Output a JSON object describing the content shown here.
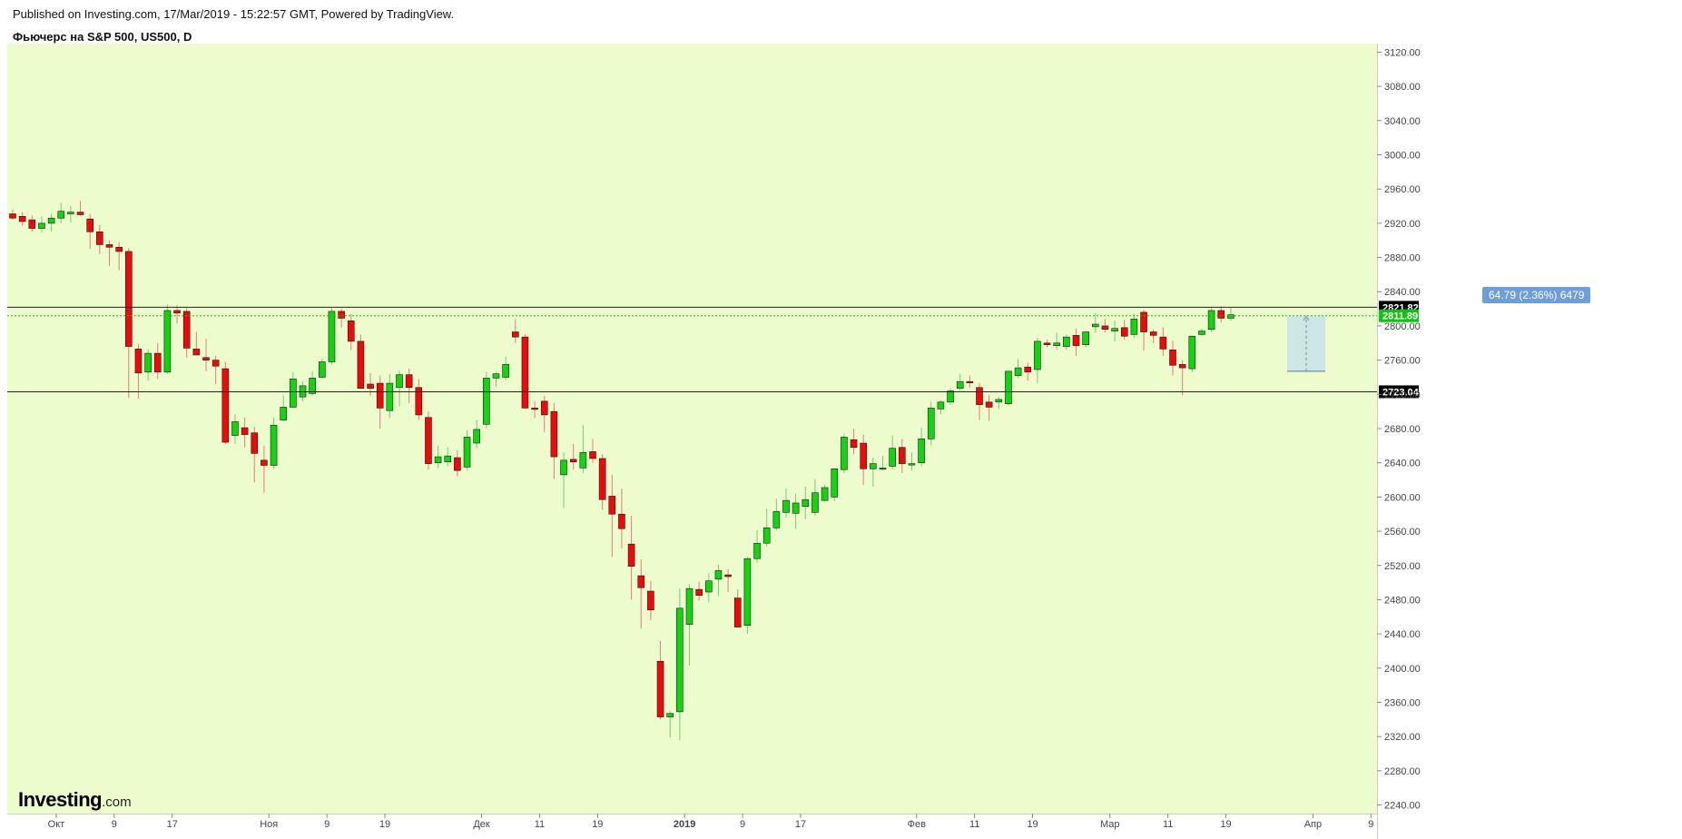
{
  "header": {
    "published": "Published on Investing.com, 17/Mar/2019 - 15:22:57 GMT, Powered by TradingView.",
    "symbol": "Фьючерс на S&P 500, US500, D"
  },
  "logo": {
    "brand": "Investing",
    "tld": ".com"
  },
  "colors": {
    "background": "#ecfccc",
    "up": "#13d313",
    "down": "#ee0a0a",
    "up_wick": "#7bc87b",
    "down_wick": "#e87b7b",
    "level": "#222222",
    "last_price": "#13c313"
  },
  "measure": {
    "label": "64.79 (2.36%) 6479",
    "from_price": 2747,
    "to_price": 2811.89
  },
  "chart_data": {
    "type": "candlestick",
    "y_axis": {
      "min": 2230,
      "max": 3130,
      "ticks": [
        "3120.00",
        "3080.00",
        "3040.00",
        "3000.00",
        "2960.00",
        "2920.00",
        "2880.00",
        "2840.00",
        "2800.00",
        "2760.00",
        "2720.00",
        "2680.00",
        "2640.00",
        "2600.00",
        "2560.00",
        "2520.00",
        "2480.00",
        "2440.00",
        "2400.00",
        "2360.00",
        "2320.00",
        "2280.00",
        "2240.00"
      ]
    },
    "x_axis": {
      "labels": [
        {
          "text": "Окт",
          "index": 4.5
        },
        {
          "text": "9",
          "index": 10.5
        },
        {
          "text": "17",
          "index": 16.5
        },
        {
          "text": "Ноя",
          "index": 26.5
        },
        {
          "text": "9",
          "index": 32.5
        },
        {
          "text": "19",
          "index": 38.5
        },
        {
          "text": "Дек",
          "index": 48.5
        },
        {
          "text": "11",
          "index": 54.5
        },
        {
          "text": "19",
          "index": 60.5
        },
        {
          "text": "2019",
          "index": 69.5,
          "bold": true
        },
        {
          "text": "9",
          "index": 75.5
        },
        {
          "text": "17",
          "index": 81.5
        },
        {
          "text": "Фев",
          "index": 93.5
        },
        {
          "text": "11",
          "index": 99.5
        },
        {
          "text": "19",
          "index": 105.5
        },
        {
          "text": "Мар",
          "index": 113.5
        },
        {
          "text": "11",
          "index": 119.5
        },
        {
          "text": "19",
          "index": 125.5
        },
        {
          "text": "Апр",
          "index": 134.5
        },
        {
          "text": "9",
          "index": 140.5
        }
      ]
    },
    "levels": [
      {
        "price": 2821.82,
        "label": "2821.82"
      },
      {
        "price": 2723.04,
        "label": "2723.04"
      }
    ],
    "last_price": {
      "price": 2811.89,
      "label": "2811.89"
    },
    "candles": [
      [
        2931,
        2936,
        2924,
        2926
      ],
      [
        2928,
        2933,
        2917,
        2922
      ],
      [
        2924,
        2929,
        2910,
        2914
      ],
      [
        2914,
        2928,
        2909,
        2920
      ],
      [
        2920,
        2931,
        2910,
        2926
      ],
      [
        2926,
        2944,
        2920,
        2934
      ],
      [
        2931,
        2940,
        2921,
        2933
      ],
      [
        2933,
        2946,
        2929,
        2930
      ],
      [
        2925,
        2931,
        2890,
        2910
      ],
      [
        2910,
        2918,
        2884,
        2895
      ],
      [
        2895,
        2900,
        2870,
        2892
      ],
      [
        2892,
        2898,
        2865,
        2887
      ],
      [
        2887,
        2891,
        2716,
        2776
      ],
      [
        2773,
        2779,
        2715,
        2745
      ],
      [
        2746,
        2773,
        2736,
        2768
      ],
      [
        2768,
        2780,
        2738,
        2746
      ],
      [
        2746,
        2825,
        2744,
        2818
      ],
      [
        2818,
        2824,
        2803,
        2815
      ],
      [
        2817,
        2821,
        2763,
        2774
      ],
      [
        2773,
        2793,
        2768,
        2766
      ],
      [
        2763,
        2785,
        2747,
        2760
      ],
      [
        2760,
        2765,
        2732,
        2753
      ],
      [
        2750,
        2758,
        2662,
        2664
      ],
      [
        2672,
        2697,
        2662,
        2688
      ],
      [
        2681,
        2693,
        2658,
        2673
      ],
      [
        2675,
        2682,
        2617,
        2651
      ],
      [
        2643,
        2660,
        2605,
        2637
      ],
      [
        2637,
        2693,
        2633,
        2684
      ],
      [
        2690,
        2719,
        2688,
        2705
      ],
      [
        2705,
        2746,
        2704,
        2738
      ],
      [
        2717,
        2735,
        2712,
        2730
      ],
      [
        2721,
        2747,
        2719,
        2739
      ],
      [
        2740,
        2762,
        2738,
        2758
      ],
      [
        2758,
        2821,
        2755,
        2817
      ],
      [
        2817,
        2820,
        2798,
        2809
      ],
      [
        2806,
        2814,
        2772,
        2782
      ],
      [
        2782,
        2790,
        2730,
        2727
      ],
      [
        2732,
        2745,
        2718,
        2727
      ],
      [
        2733,
        2742,
        2680,
        2704
      ],
      [
        2701,
        2744,
        2692,
        2733
      ],
      [
        2728,
        2748,
        2706,
        2743
      ],
      [
        2743,
        2750,
        2710,
        2728
      ],
      [
        2728,
        2738,
        2690,
        2696
      ],
      [
        2693,
        2700,
        2632,
        2639
      ],
      [
        2640,
        2660,
        2634,
        2647
      ],
      [
        2641,
        2658,
        2636,
        2648
      ],
      [
        2646,
        2655,
        2624,
        2631
      ],
      [
        2635,
        2678,
        2631,
        2670
      ],
      [
        2663,
        2690,
        2657,
        2679
      ],
      [
        2685,
        2746,
        2680,
        2739
      ],
      [
        2739,
        2746,
        2729,
        2744
      ],
      [
        2740,
        2764,
        2737,
        2755
      ],
      [
        2793,
        2808,
        2780,
        2787
      ],
      [
        2787,
        2790,
        2703,
        2704
      ],
      [
        2704,
        2712,
        2692,
        2703
      ],
      [
        2712,
        2718,
        2676,
        2696
      ],
      [
        2700,
        2710,
        2621,
        2647
      ],
      [
        2626,
        2652,
        2587,
        2643
      ],
      [
        2644,
        2662,
        2632,
        2641
      ],
      [
        2634,
        2684,
        2628,
        2652
      ],
      [
        2653,
        2668,
        2640,
        2645
      ],
      [
        2645,
        2650,
        2585,
        2597
      ],
      [
        2601,
        2626,
        2530,
        2580
      ],
      [
        2580,
        2610,
        2540,
        2563
      ],
      [
        2545,
        2578,
        2480,
        2519
      ],
      [
        2508,
        2527,
        2446,
        2494
      ],
      [
        2490,
        2502,
        2456,
        2468
      ],
      [
        2408,
        2432,
        2340,
        2343
      ],
      [
        2343,
        2350,
        2319,
        2347
      ],
      [
        2349,
        2493,
        2316,
        2470
      ],
      [
        2451,
        2498,
        2403,
        2493
      ],
      [
        2492,
        2501,
        2479,
        2485
      ],
      [
        2489,
        2511,
        2477,
        2502
      ],
      [
        2504,
        2521,
        2484,
        2514
      ],
      [
        2509,
        2516,
        2489,
        2507
      ],
      [
        2482,
        2492,
        2448,
        2448
      ],
      [
        2450,
        2530,
        2440,
        2528
      ],
      [
        2528,
        2561,
        2523,
        2546
      ],
      [
        2546,
        2586,
        2542,
        2564
      ],
      [
        2564,
        2598,
        2561,
        2583
      ],
      [
        2582,
        2610,
        2576,
        2596
      ],
      [
        2581,
        2604,
        2563,
        2593
      ],
      [
        2589,
        2612,
        2574,
        2597
      ],
      [
        2582,
        2621,
        2578,
        2605
      ],
      [
        2596,
        2614,
        2595,
        2611
      ],
      [
        2600,
        2627,
        2595,
        2633
      ],
      [
        2632,
        2674,
        2628,
        2670
      ],
      [
        2667,
        2680,
        2650,
        2658
      ],
      [
        2663,
        2673,
        2614,
        2633
      ],
      [
        2633,
        2646,
        2612,
        2639
      ],
      [
        2633,
        2648,
        2631,
        2634
      ],
      [
        2636,
        2672,
        2632,
        2657
      ],
      [
        2658,
        2668,
        2628,
        2639
      ],
      [
        2638,
        2652,
        2631,
        2639
      ],
      [
        2640,
        2681,
        2636,
        2668
      ],
      [
        2668,
        2711,
        2661,
        2704
      ],
      [
        2703,
        2713,
        2697,
        2711
      ],
      [
        2711,
        2727,
        2708,
        2724
      ],
      [
        2727,
        2744,
        2724,
        2735
      ],
      [
        2735,
        2742,
        2728,
        2734
      ],
      [
        2728,
        2733,
        2690,
        2708
      ],
      [
        2711,
        2719,
        2689,
        2705
      ],
      [
        2711,
        2717,
        2703,
        2714
      ],
      [
        2709,
        2742,
        2707,
        2747
      ],
      [
        2742,
        2761,
        2739,
        2751
      ],
      [
        2752,
        2757,
        2736,
        2746
      ],
      [
        2749,
        2786,
        2733,
        2782
      ],
      [
        2780,
        2784,
        2775,
        2778
      ],
      [
        2777,
        2792,
        2772,
        2780
      ],
      [
        2776,
        2790,
        2772,
        2787
      ],
      [
        2789,
        2797,
        2765,
        2777
      ],
      [
        2778,
        2792,
        2775,
        2793
      ],
      [
        2799,
        2815,
        2792,
        2802
      ],
      [
        2800,
        2808,
        2792,
        2796
      ],
      [
        2794,
        2806,
        2782,
        2797
      ],
      [
        2798,
        2807,
        2784,
        2788
      ],
      [
        2790,
        2814,
        2786,
        2808
      ],
      [
        2816,
        2819,
        2771,
        2793
      ],
      [
        2793,
        2796,
        2780,
        2789
      ],
      [
        2787,
        2798,
        2765,
        2773
      ],
      [
        2772,
        2783,
        2742,
        2754
      ],
      [
        2755,
        2760,
        2719,
        2751
      ],
      [
        2750,
        2787,
        2746,
        2788
      ],
      [
        2790,
        2797,
        2788,
        2794
      ],
      [
        2796,
        2822,
        2793,
        2818
      ],
      [
        2818,
        2823,
        2804,
        2809
      ],
      [
        2809,
        2821,
        2806,
        2813
      ]
    ]
  }
}
